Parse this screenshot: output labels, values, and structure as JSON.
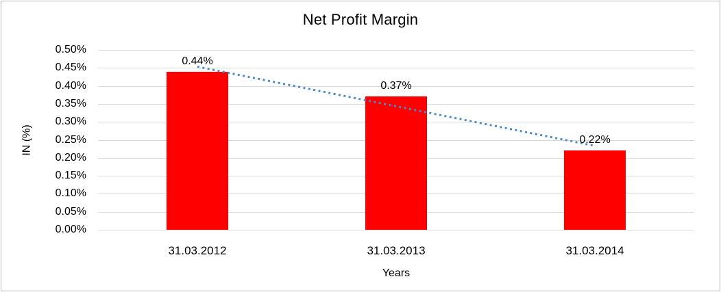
{
  "chart_data": {
    "type": "bar",
    "title": "Net Profit Margin",
    "xlabel": "Years",
    "ylabel": "IN (%)",
    "unit": "%",
    "categories": [
      "31.03.2012",
      "31.03.2013",
      "31.03.2014"
    ],
    "values": [
      0.44,
      0.37,
      0.22
    ],
    "data_labels": [
      "0.44%",
      "0.37%",
      "0.22%"
    ],
    "y_tick_labels": [
      "0.50%",
      "0.45%",
      "0.40%",
      "0.35%",
      "0.30%",
      "0.25%",
      "0.20%",
      "0.15%",
      "0.10%",
      "0.05%",
      "0.00%"
    ],
    "ylim": [
      0,
      0.5
    ],
    "grid": true,
    "legend": "none",
    "bar_color": "#FF0000",
    "trendline": {
      "type": "linear",
      "style": "dotted",
      "color": "#4C8BCB"
    }
  },
  "colors": {
    "bar": "#FF0000",
    "trendline": "#4C8BCB",
    "gridline": "#D9D9D9",
    "text": "#000000",
    "frame_border": "#B4B4B4",
    "background": "#FFFFFF"
  }
}
